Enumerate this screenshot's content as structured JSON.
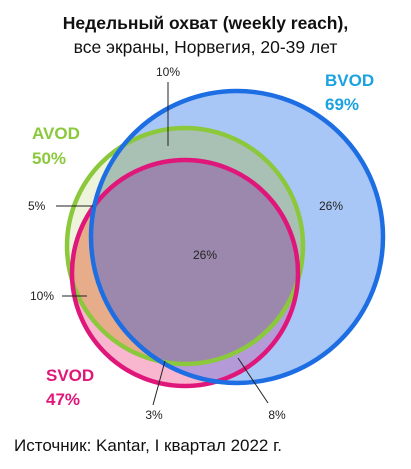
{
  "title_line1": "Недельный охват (weekly reach),",
  "title_line2": "все экраны, Норвегия, 20-39 лет",
  "source": "Источник: Kantar, I квартал 2022 г.",
  "sets": {
    "bvod": {
      "name": "BVOD",
      "value": "69%",
      "color": "#1e6ee3",
      "fill": "#a9c7f6",
      "label_color": "#1aa3e0"
    },
    "avod": {
      "name": "AVOD",
      "value": "50%",
      "color": "#8bc83c",
      "label_color": "#8bc83c"
    },
    "svod": {
      "name": "SVOD",
      "value": "47%",
      "color": "#e0177a",
      "label_color": "#e0177a"
    }
  },
  "regions": {
    "avod_bvod_only": "10%",
    "bvod_only": "26%",
    "avod_only": "5%",
    "all_three": "26%",
    "avod_svod_only": "10%",
    "svod_only": "3%",
    "svod_bvod_only": "8%"
  }
}
